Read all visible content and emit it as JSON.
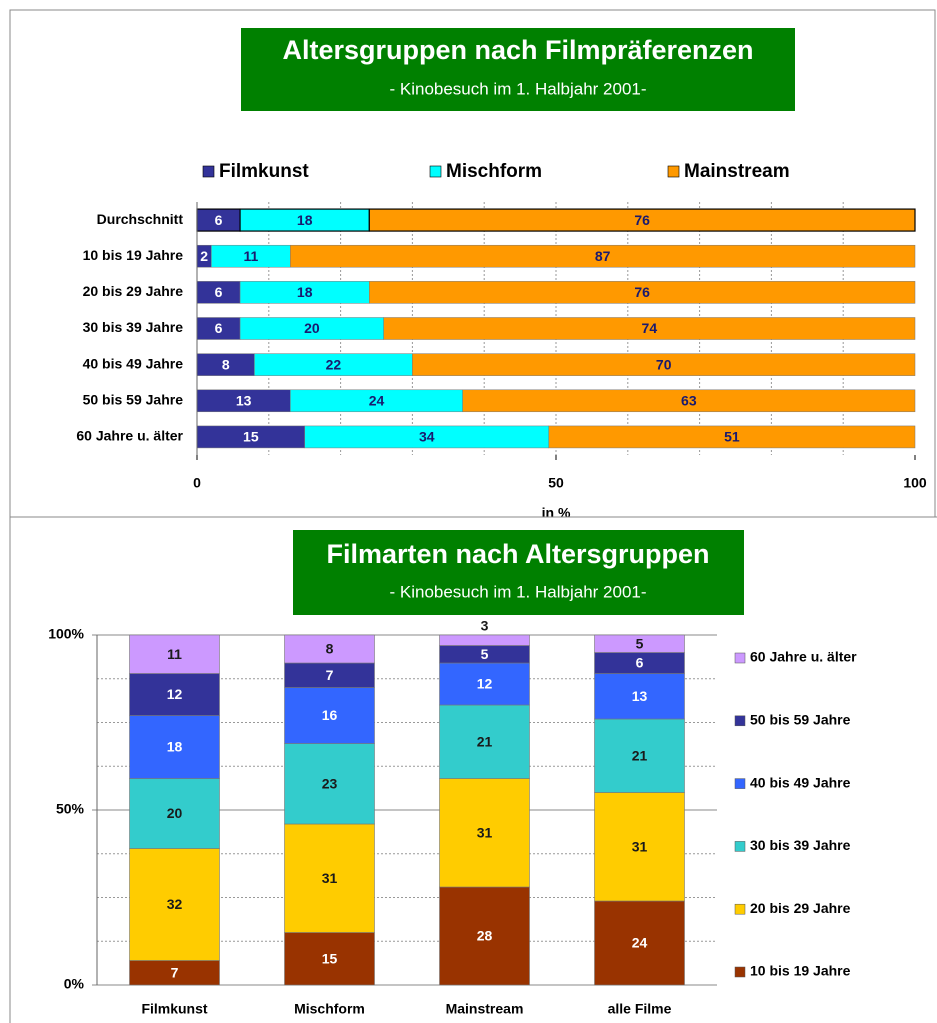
{
  "chart_data": [
    {
      "type": "hbar-stacked",
      "title": "Altersgruppen nach Filmpräferenzen",
      "subtitle": "- Kinobesuch im 1. Halbjahr 2001-",
      "x_label": "in %",
      "categories": [
        "Durchschnitt",
        "10 bis 19 Jahre",
        "20 bis 29 Jahre",
        "30 bis 39 Jahre",
        "40 bis 49 Jahre",
        "50 bis 59 Jahre",
        "60 Jahre u. älter"
      ],
      "series": [
        {
          "name": "Filmkunst",
          "color": "#333399",
          "label_color": "#ffffff",
          "values": [
            6,
            2,
            6,
            6,
            8,
            13,
            15
          ]
        },
        {
          "name": "Mischform",
          "color": "#00ffff",
          "label_color": "#1a1a6e",
          "values": [
            18,
            11,
            18,
            20,
            22,
            24,
            34
          ]
        },
        {
          "name": "Mainstream",
          "color": "#ff9900",
          "label_color": "#1a1a6e",
          "values": [
            76,
            87,
            76,
            74,
            70,
            63,
            51
          ]
        }
      ],
      "xlim": [
        0,
        100
      ],
      "xticks": [
        0,
        50,
        100
      ],
      "minor_grid": [
        10,
        20,
        30,
        40,
        50,
        60,
        70,
        80,
        90
      ],
      "legend": "top"
    },
    {
      "type": "column-stacked",
      "title": "Filmarten nach Altersgruppen",
      "subtitle": "- Kinobesuch im 1. Halbjahr 2001-",
      "categories": [
        "Filmkunst",
        "Mischform",
        "Mainstream",
        "alle Filme"
      ],
      "series": [
        {
          "name": "10 bis 19 Jahre",
          "color": "#993300",
          "label_color": "#ffffff",
          "values": [
            7,
            15,
            28,
            24
          ]
        },
        {
          "name": "20 bis 29 Jahre",
          "color": "#ffcc00",
          "label_color": "#1a1a1a",
          "values": [
            32,
            31,
            31,
            31
          ]
        },
        {
          "name": "30 bis 39 Jahre",
          "color": "#33cccc",
          "label_color": "#1a1a1a",
          "values": [
            20,
            23,
            21,
            21
          ]
        },
        {
          "name": "40 bis 49 Jahre",
          "color": "#3366ff",
          "label_color": "#ffffff",
          "values": [
            18,
            16,
            12,
            13
          ]
        },
        {
          "name": "50 bis 59 Jahre",
          "color": "#333399",
          "label_color": "#ffffff",
          "values": [
            12,
            7,
            5,
            6
          ]
        },
        {
          "name": "60 Jahre u. älter",
          "color": "#cc99ff",
          "label_color": "#1a1a1a",
          "values": [
            11,
            8,
            3,
            5
          ]
        }
      ],
      "ylim": [
        0,
        100
      ],
      "yticks": [
        {
          "value": 0,
          "label": "0%"
        },
        {
          "value": 50,
          "label": "50%"
        },
        {
          "value": 100,
          "label": "100%"
        }
      ],
      "minor_grid": [
        12.5,
        25,
        37.5,
        62.5,
        75,
        87.5
      ],
      "legend": "right"
    }
  ]
}
